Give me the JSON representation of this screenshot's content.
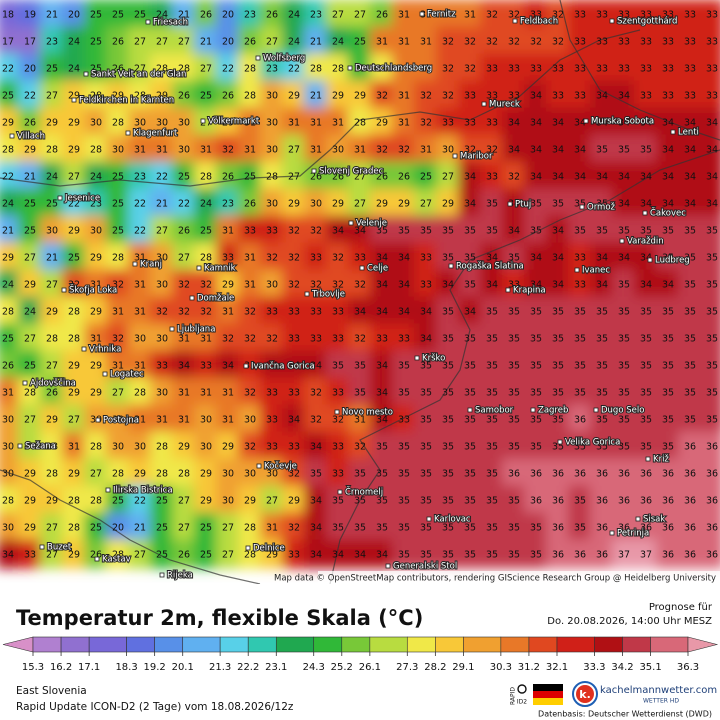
{
  "map": {
    "grid_values": [
      [
        18,
        19,
        21,
        20,
        25,
        25,
        25,
        24,
        21,
        26,
        20,
        23,
        26,
        24,
        23,
        27,
        27,
        26,
        31,
        31,
        31,
        31,
        32,
        32,
        33,
        32,
        33,
        33,
        33,
        33,
        33,
        33,
        33
      ],
      [
        17,
        17,
        23,
        24,
        25,
        26,
        27,
        27,
        27,
        21,
        20,
        26,
        27,
        24,
        21,
        24,
        25,
        31,
        31,
        31,
        32,
        32,
        32,
        32,
        32,
        32,
        33,
        33,
        33,
        33,
        33,
        33,
        33
      ],
      [
        22,
        20,
        25,
        24,
        25,
        26,
        27,
        28,
        28,
        27,
        22,
        28,
        23,
        22,
        28,
        28,
        25,
        28,
        31,
        31,
        32,
        32,
        33,
        33,
        33,
        33,
        33,
        33,
        33,
        33,
        33,
        33,
        33
      ],
      [
        25,
        22,
        27,
        29,
        28,
        29,
        28,
        29,
        26,
        25,
        26,
        28,
        30,
        29,
        21,
        29,
        29,
        32,
        31,
        32,
        32,
        33,
        33,
        33,
        34,
        33,
        33,
        34,
        34,
        33,
        33,
        33,
        33
      ],
      [
        29,
        26,
        29,
        29,
        30,
        28,
        30,
        30,
        30,
        27,
        29,
        31,
        30,
        31,
        31,
        31,
        28,
        29,
        31,
        32,
        33,
        33,
        33,
        34,
        34,
        34,
        34,
        34,
        34,
        34,
        34,
        34,
        34
      ],
      [
        28,
        29,
        28,
        29,
        28,
        30,
        31,
        31,
        30,
        31,
        32,
        31,
        30,
        27,
        31,
        30,
        31,
        32,
        32,
        31,
        30,
        32,
        32,
        34,
        34,
        34,
        34,
        35,
        35,
        35,
        34,
        34,
        34
      ],
      [
        22,
        21,
        24,
        27,
        24,
        25,
        23,
        22,
        25,
        28,
        26,
        25,
        28,
        27,
        26,
        26,
        27,
        26,
        26,
        25,
        27,
        34,
        33,
        32,
        34,
        34,
        34,
        34,
        34,
        34,
        34,
        34,
        34
      ],
      [
        24,
        25,
        25,
        22,
        23,
        25,
        22,
        21,
        22,
        24,
        23,
        26,
        30,
        29,
        30,
        29,
        27,
        29,
        29,
        27,
        29,
        34,
        35,
        34,
        35,
        35,
        35,
        35,
        34,
        34,
        34,
        34,
        34
      ],
      [
        21,
        25,
        30,
        29,
        30,
        25,
        22,
        27,
        26,
        25,
        31,
        33,
        33,
        32,
        32,
        34,
        34,
        35,
        35,
        35,
        35,
        35,
        35,
        34,
        35,
        34,
        35,
        35,
        35,
        35,
        35,
        35,
        35
      ],
      [
        29,
        27,
        21,
        25,
        29,
        28,
        31,
        30,
        27,
        28,
        33,
        31,
        32,
        32,
        33,
        32,
        33,
        34,
        34,
        33,
        35,
        35,
        34,
        35,
        34,
        34,
        33,
        34,
        34,
        34,
        35,
        35,
        35
      ],
      [
        24,
        29,
        27,
        32,
        31,
        32,
        31,
        30,
        32,
        32,
        29,
        31,
        30,
        32,
        32,
        32,
        32,
        34,
        34,
        33,
        34,
        35,
        34,
        33,
        34,
        34,
        33,
        34,
        35,
        34,
        34,
        35,
        35
      ],
      [
        28,
        24,
        29,
        28,
        29,
        31,
        31,
        32,
        32,
        32,
        31,
        32,
        33,
        33,
        33,
        33,
        34,
        34,
        34,
        34,
        35,
        34,
        35,
        35,
        35,
        35,
        35,
        35,
        35,
        35,
        35,
        35,
        35
      ],
      [
        25,
        27,
        28,
        28,
        31,
        32,
        30,
        30,
        31,
        31,
        32,
        32,
        32,
        33,
        33,
        33,
        32,
        33,
        33,
        34,
        35,
        35,
        35,
        35,
        35,
        35,
        35,
        35,
        35,
        35,
        35,
        35,
        35
      ],
      [
        26,
        25,
        27,
        29,
        29,
        31,
        31,
        33,
        34,
        33,
        34,
        33,
        34,
        34,
        34,
        35,
        35,
        34,
        35,
        35,
        35,
        35,
        35,
        35,
        35,
        35,
        35,
        35,
        35,
        35,
        35,
        35,
        35
      ],
      [
        31,
        28,
        26,
        29,
        29,
        27,
        28,
        30,
        31,
        31,
        31,
        32,
        33,
        33,
        32,
        33,
        35,
        34,
        35,
        35,
        35,
        35,
        35,
        35,
        35,
        35,
        35,
        35,
        35,
        35,
        35,
        35,
        35
      ],
      [
        30,
        27,
        29,
        27,
        30,
        30,
        31,
        31,
        31,
        30,
        31,
        30,
        33,
        34,
        32,
        32,
        31,
        34,
        33,
        35,
        35,
        35,
        35,
        35,
        35,
        35,
        36,
        35,
        35,
        35,
        35,
        35,
        35
      ],
      [
        30,
        27,
        28,
        31,
        28,
        30,
        30,
        28,
        29,
        30,
        29,
        32,
        33,
        33,
        34,
        33,
        32,
        35,
        35,
        35,
        35,
        35,
        35,
        35,
        35,
        35,
        35,
        35,
        35,
        35,
        35,
        36,
        36
      ],
      [
        30,
        29,
        28,
        29,
        27,
        28,
        29,
        28,
        28,
        29,
        30,
        30,
        30,
        32,
        35,
        33,
        35,
        35,
        35,
        35,
        35,
        35,
        35,
        36,
        36,
        36,
        36,
        36,
        36,
        36,
        36,
        36,
        36
      ],
      [
        28,
        29,
        29,
        28,
        28,
        25,
        22,
        25,
        27,
        29,
        30,
        29,
        27,
        29,
        34,
        35,
        35,
        35,
        35,
        35,
        35,
        35,
        35,
        35,
        36,
        36,
        35,
        36,
        36,
        36,
        36,
        36,
        36
      ],
      [
        30,
        29,
        27,
        28,
        25,
        20,
        21,
        25,
        27,
        25,
        27,
        28,
        31,
        32,
        34,
        35,
        35,
        35,
        35,
        35,
        35,
        35,
        35,
        35,
        35,
        36,
        35,
        36,
        36,
        36,
        36,
        36,
        36
      ],
      [
        34,
        33,
        27,
        29,
        26,
        28,
        27,
        25,
        26,
        25,
        27,
        28,
        29,
        33,
        34,
        34,
        34,
        34,
        35,
        35,
        35,
        35,
        35,
        35,
        35,
        36,
        36,
        36,
        37,
        37,
        36,
        36,
        36
      ]
    ],
    "cities": [
      "Fernitz",
      "Friesach",
      "Feldbach",
      "Szentgotthárd",
      "Wolfsberg",
      "Sankt Veit an der Glan",
      "Deutschlandsberg",
      "Feldkirchen in Kärnten",
      "Mureck",
      "Völkermarkt",
      "Murska Sobota",
      "Klagenfurt",
      "Villach",
      "Lenti",
      "Maribor",
      "Slovenj Gradec",
      "Jesenice",
      "Ptuj",
      "Ormož",
      "Čakovec",
      "Velenje",
      "Varaždin",
      "Kranj",
      "Kamnik",
      "Celje",
      "Rogaška Slatina",
      "Ivanec",
      "Ludbreg",
      "Škofja Loka",
      "Krapina",
      "Domžale",
      "Trbovlje",
      "Ljubljana",
      "Vrhnika",
      "Ivančna Gorica",
      "Krško",
      "Logatec",
      "Ajdovščina",
      "Samobor",
      "Zagreb",
      "Dugo Selo",
      "Novo mesto",
      "Postojna",
      "Velika Gorica",
      "Sežana",
      "Križ",
      "Kočevje",
      "Ilirska Bistrica",
      "Črnomelj",
      "Karlovac",
      "Sisak",
      "Petrinja",
      "Buzet",
      "Kastav",
      "Delnice",
      "Rijeka",
      "Generalski Stol"
    ],
    "attribution": "Map data © OpenStreetMap contributors, rendering GIScience Research Group @ Heidelberg University"
  },
  "legend": {
    "title": "Temperatur 2m, flexible Skala (°C)",
    "forecast_label": "Prognose für",
    "forecast_time": "Do. 20.08.2026, 14:00 Uhr MESZ",
    "ticks": [
      15.3,
      16.2,
      17.1,
      18.3,
      19.2,
      20.1,
      21.3,
      22.2,
      23.1,
      24.3,
      25.2,
      26.1,
      27.3,
      28.2,
      29.1,
      30.3,
      31.2,
      32.1,
      33.3,
      34.2,
      35.1,
      36.3
    ],
    "colors": [
      "#d890c8",
      "#b080d0",
      "#9070d0",
      "#7868d8",
      "#6070e0",
      "#5890e8",
      "#60b0f0",
      "#58d0e8",
      "#30c8b0",
      "#20a850",
      "#30b838",
      "#78c838",
      "#b8dc40",
      "#f0e848",
      "#f8c838",
      "#f0a030",
      "#e87828",
      "#e04820",
      "#d02018",
      "#b01014",
      "#c03848",
      "#d86878",
      "#e898a8"
    ]
  },
  "footer": {
    "region": "East Slovenia",
    "model_run": "Rapid Update ICON-D2 (2 Tage) vom 18.08.2026/12z",
    "rapid_label": "RAPID",
    "rapid_sub": "ID2",
    "logo_letter": "k.",
    "brand": "kachelmannwetter.com",
    "brand_sub": "WETTER HD",
    "data_source": "Datenbasis: Deutscher Wetterdienst (DWD)"
  }
}
